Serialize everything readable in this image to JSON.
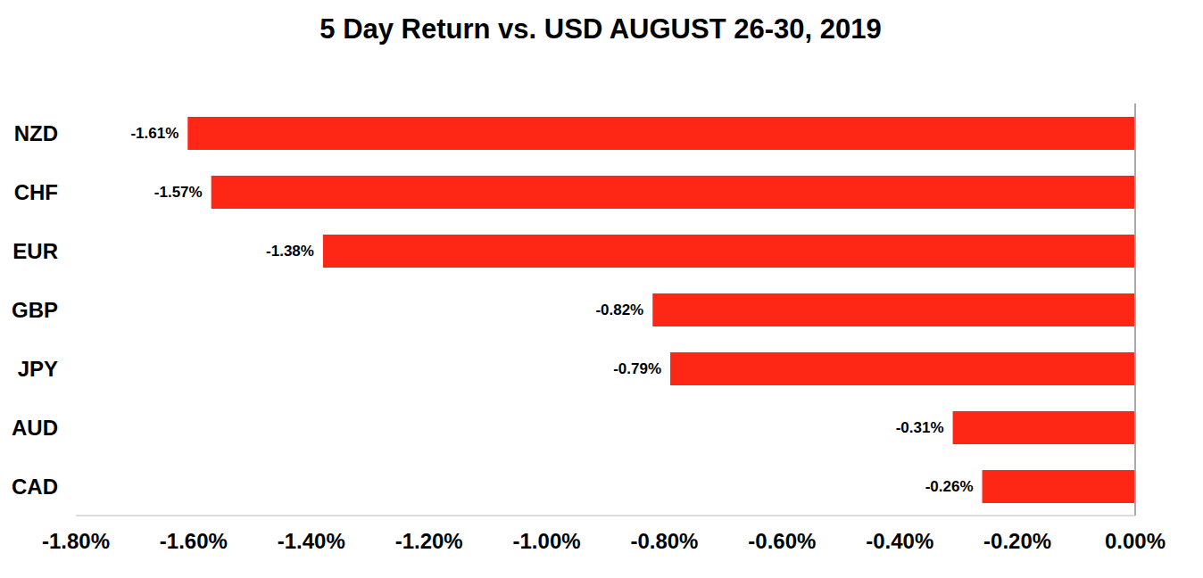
{
  "chart_data": {
    "type": "bar",
    "title": "5 Day Return vs. USD AUGUST 26-30, 2019",
    "orientation": "horizontal",
    "categories": [
      "NZD",
      "CHF",
      "EUR",
      "GBP",
      "JPY",
      "AUD",
      "CAD"
    ],
    "values": [
      -1.61,
      -1.57,
      -1.38,
      -0.82,
      -0.79,
      -0.31,
      -0.26
    ],
    "value_labels": [
      "-1.61%",
      "-1.57%",
      "-1.38%",
      "-0.82%",
      "-0.79%",
      "-0.31%",
      "-0.26%"
    ],
    "color": "#fe2715",
    "xlim": [
      -1.8,
      0
    ],
    "xticks": [
      {
        "value": -1.8,
        "label": "-1.80%"
      },
      {
        "value": -1.6,
        "label": "-1.60%"
      },
      {
        "value": -1.4,
        "label": "-1.40%"
      },
      {
        "value": -1.2,
        "label": "-1.20%"
      },
      {
        "value": -1.0,
        "label": "-1.00%"
      },
      {
        "value": -0.8,
        "label": "-0.80%"
      },
      {
        "value": -0.6,
        "label": "-0.60%"
      },
      {
        "value": -0.4,
        "label": "-0.40%"
      },
      {
        "value": -0.2,
        "label": "-0.20%"
      },
      {
        "value": 0,
        "label": "0.00%"
      }
    ],
    "data_labels": true,
    "grid": false
  }
}
